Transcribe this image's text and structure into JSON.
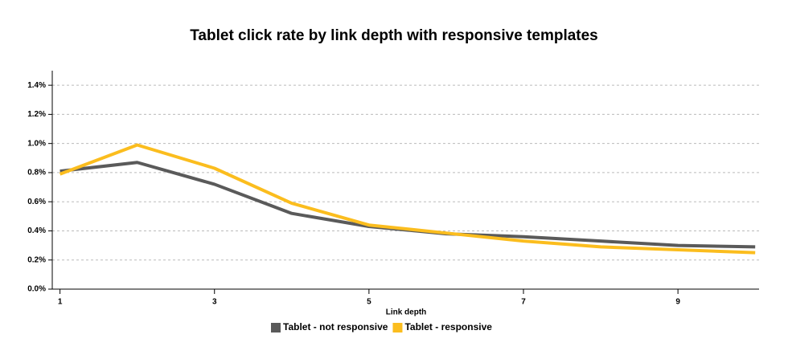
{
  "chart_data": {
    "type": "line",
    "title": "Tablet click rate by link depth with responsive templates",
    "x_label": "Link depth",
    "x": [
      1,
      2,
      3,
      4,
      5,
      6,
      7,
      8,
      9,
      10
    ],
    "series": [
      {
        "name": "Tablet - not responsive",
        "color": "#5a5a5a",
        "values": [
          0.81,
          0.87,
          0.72,
          0.52,
          0.43,
          0.38,
          0.36,
          0.33,
          0.3,
          0.29
        ]
      },
      {
        "name": "Tablet - responsive",
        "color": "#fbbd1e",
        "values": [
          0.79,
          0.99,
          0.83,
          0.59,
          0.44,
          0.385,
          0.33,
          0.29,
          0.27,
          0.25
        ]
      }
    ],
    "xlim": [
      0.9,
      10.05
    ],
    "xticks": [
      1,
      3,
      5,
      7,
      9
    ],
    "ylim": [
      0,
      1.5
    ],
    "yticks": [
      {
        "value": 0,
        "label": "0.0%"
      },
      {
        "value": 0.2,
        "label": "0.2%"
      },
      {
        "value": 0.4,
        "label": "0.4%"
      },
      {
        "value": 0.6,
        "label": "0.6%"
      },
      {
        "value": 0.8,
        "label": "0.8%"
      },
      {
        "value": 1.0,
        "label": "1.0%"
      },
      {
        "value": 1.2,
        "label": "1.2%"
      },
      {
        "value": 1.4,
        "label": "1.4%"
      }
    ],
    "grid": true,
    "legend": "bottom"
  }
}
